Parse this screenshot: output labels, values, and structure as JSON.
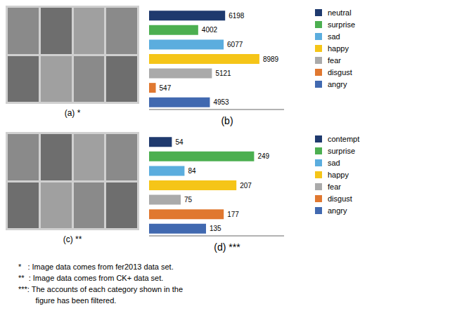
{
  "chart_data": [
    {
      "type": "bar",
      "title": "(b)",
      "orientation": "horizontal",
      "categories": [
        "neutral",
        "surprise",
        "sad",
        "happy",
        "fear",
        "disgust",
        "angry"
      ],
      "values": [
        6198,
        4002,
        6077,
        8989,
        5121,
        547,
        4953
      ],
      "colors": [
        "#1f3a6e",
        "#4caf50",
        "#5badde",
        "#f5c518",
        "#aaaaaa",
        "#e07830",
        "#4169b0"
      ],
      "xlim": [
        0,
        11000
      ],
      "data_labels": true,
      "tick_labels": false,
      "grid": false,
      "legend": "right",
      "annotations": [
        "(a) *"
      ]
    },
    {
      "type": "bar",
      "title": "(d) ***",
      "orientation": "horizontal",
      "categories": [
        "contempt",
        "surprise",
        "sad",
        "happy",
        "fear",
        "disgust",
        "angry"
      ],
      "values": [
        54,
        249,
        84,
        207,
        75,
        177,
        135
      ],
      "colors": [
        "#1f3a6e",
        "#4caf50",
        "#5badde",
        "#f5c518",
        "#aaaaaa",
        "#e07830",
        "#4169b0"
      ],
      "xlim": [
        0,
        320
      ],
      "data_labels": true,
      "tick_labels": false,
      "grid": false,
      "legend": "right",
      "annotations": [
        "(c) **"
      ]
    }
  ],
  "annotations": [
    "*   : Image data comes from fer2013 data set.",
    "**  : Image data comes from CK+ data set.",
    "***: The accounts of each category shown in the",
    "        figure has been filtered."
  ]
}
